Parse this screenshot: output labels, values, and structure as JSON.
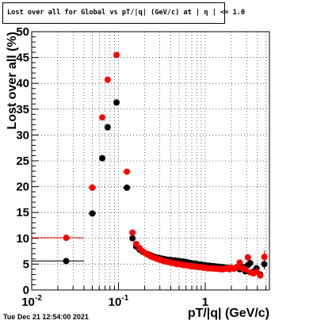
{
  "title": "Lost over all for Global vs pT/|q| (GeV/c) at | η | <= 1.0",
  "timestamp": "Tue Dec 21 12:54:00 2021",
  "chart_data": {
    "type": "scatter",
    "title": "Lost over all for Global vs pT/|q| (GeV/c) at | η | <= 1.0",
    "xlabel": "pT/|q| (GeV/c)",
    "ylabel": "Lost over all (%)",
    "xscale": "log",
    "xlim": [
      0.01,
      5.5
    ],
    "ylim": [
      0,
      50
    ],
    "grid": true,
    "x_tick_labels": [
      "10^-2",
      "10^-1",
      "1"
    ],
    "y_tick_labels": [
      "0",
      "5",
      "10",
      "15",
      "20",
      "25",
      "30",
      "35",
      "40",
      "45",
      "50"
    ],
    "colors": {
      "series_black": "#000000",
      "series_red": "#ff0000"
    },
    "series": [
      {
        "color": "#000000",
        "points": [
          {
            "x": 0.025,
            "y": 5.6,
            "xerr_lo": 0.015,
            "xerr_hi": 0.015
          },
          {
            "x": 0.05,
            "y": 14.8,
            "xerr_lo": 0.005,
            "xerr_hi": 0.005
          },
          {
            "x": 0.065,
            "y": 25.5,
            "xerr_lo": 0.0025,
            "xerr_hi": 0.0025
          },
          {
            "x": 0.075,
            "y": 31.5,
            "xerr_lo": 0.0025,
            "xerr_hi": 0.0025
          },
          {
            "x": 0.095,
            "y": 36.3,
            "xerr_lo": 0.005,
            "xerr_hi": 0.005
          },
          {
            "x": 0.125,
            "y": 19.8,
            "xerr_lo": 0.0125,
            "xerr_hi": 0.0125
          },
          {
            "x": 0.145,
            "y": 10.0,
            "xerr_lo": 0.0075,
            "xerr_hi": 0.0075
          },
          {
            "x": 0.16,
            "y": 8.4
          },
          {
            "x": 0.175,
            "y": 7.8
          },
          {
            "x": 0.19,
            "y": 7.4
          },
          {
            "x": 0.205,
            "y": 7.1
          },
          {
            "x": 0.22,
            "y": 6.9
          },
          {
            "x": 0.235,
            "y": 6.7
          },
          {
            "x": 0.25,
            "y": 6.5
          },
          {
            "x": 0.27,
            "y": 6.3
          },
          {
            "x": 0.29,
            "y": 6.2
          },
          {
            "x": 0.31,
            "y": 6.1
          },
          {
            "x": 0.33,
            "y": 6.0
          },
          {
            "x": 0.35,
            "y": 5.9
          },
          {
            "x": 0.375,
            "y": 5.8
          },
          {
            "x": 0.4,
            "y": 5.8
          },
          {
            "x": 0.425,
            "y": 5.7
          },
          {
            "x": 0.45,
            "y": 5.7
          },
          {
            "x": 0.475,
            "y": 5.6
          },
          {
            "x": 0.5,
            "y": 5.6
          },
          {
            "x": 0.53,
            "y": 5.5
          },
          {
            "x": 0.56,
            "y": 5.5
          },
          {
            "x": 0.6,
            "y": 5.4
          },
          {
            "x": 0.64,
            "y": 5.3
          },
          {
            "x": 0.68,
            "y": 5.2
          },
          {
            "x": 0.72,
            "y": 5.1
          },
          {
            "x": 0.76,
            "y": 5.1
          },
          {
            "x": 0.8,
            "y": 5.0
          },
          {
            "x": 0.85,
            "y": 4.9
          },
          {
            "x": 0.9,
            "y": 4.9
          },
          {
            "x": 0.95,
            "y": 4.8
          },
          {
            "x": 1.0,
            "y": 4.8
          },
          {
            "x": 1.06,
            "y": 4.7
          },
          {
            "x": 1.12,
            "y": 4.7
          },
          {
            "x": 1.19,
            "y": 4.6
          },
          {
            "x": 1.26,
            "y": 4.6
          },
          {
            "x": 1.34,
            "y": 4.5
          },
          {
            "x": 1.42,
            "y": 4.5
          },
          {
            "x": 1.5,
            "y": 4.4
          },
          {
            "x": 1.6,
            "y": 4.4
          },
          {
            "x": 1.7,
            "y": 4.3
          },
          {
            "x": 1.8,
            "y": 4.3
          },
          {
            "x": 1.9,
            "y": 4.2
          },
          {
            "x": 2.0,
            "y": 4.2
          },
          {
            "x": 2.15,
            "y": 4.1
          },
          {
            "x": 2.3,
            "y": 4.3
          },
          {
            "x": 2.5,
            "y": 4.0
          },
          {
            "x": 2.7,
            "y": 4.4
          },
          {
            "x": 2.9,
            "y": 3.6
          },
          {
            "x": 3.1,
            "y": 4.8
          },
          {
            "x": 3.3,
            "y": 5.2
          },
          {
            "x": 3.6,
            "y": 3.5
          },
          {
            "x": 3.9,
            "y": 4.2
          },
          {
            "x": 4.3,
            "y": 3.0
          },
          {
            "x": 4.8,
            "y": 5.0,
            "yerr": 1.0
          }
        ]
      },
      {
        "color": "#ff0000",
        "points": [
          {
            "x": 0.025,
            "y": 10.1,
            "xerr_lo": 0.015,
            "xerr_hi": 0.015
          },
          {
            "x": 0.05,
            "y": 19.8,
            "xerr_lo": 0.005,
            "xerr_hi": 0.005
          },
          {
            "x": 0.065,
            "y": 33.4,
            "xerr_lo": 0.0025,
            "xerr_hi": 0.0025
          },
          {
            "x": 0.075,
            "y": 40.7,
            "xerr_lo": 0.0025,
            "xerr_hi": 0.0025
          },
          {
            "x": 0.095,
            "y": 45.5,
            "xerr_lo": 0.005,
            "xerr_hi": 0.005
          },
          {
            "x": 0.125,
            "y": 22.9,
            "xerr_lo": 0.0125,
            "xerr_hi": 0.0125
          },
          {
            "x": 0.145,
            "y": 11.1,
            "xerr_lo": 0.0075,
            "xerr_hi": 0.0075
          },
          {
            "x": 0.16,
            "y": 8.9
          },
          {
            "x": 0.175,
            "y": 8.1
          },
          {
            "x": 0.19,
            "y": 7.5
          },
          {
            "x": 0.205,
            "y": 7.1
          },
          {
            "x": 0.22,
            "y": 6.8
          },
          {
            "x": 0.235,
            "y": 6.5
          },
          {
            "x": 0.25,
            "y": 6.3
          },
          {
            "x": 0.27,
            "y": 6.1
          },
          {
            "x": 0.29,
            "y": 5.9
          },
          {
            "x": 0.31,
            "y": 5.8
          },
          {
            "x": 0.33,
            "y": 5.6
          },
          {
            "x": 0.35,
            "y": 5.5
          },
          {
            "x": 0.375,
            "y": 5.4
          },
          {
            "x": 0.4,
            "y": 5.3
          },
          {
            "x": 0.425,
            "y": 5.2
          },
          {
            "x": 0.45,
            "y": 5.1
          },
          {
            "x": 0.475,
            "y": 5.0
          },
          {
            "x": 0.5,
            "y": 5.0
          },
          {
            "x": 0.53,
            "y": 4.9
          },
          {
            "x": 0.56,
            "y": 4.8
          },
          {
            "x": 0.6,
            "y": 4.8
          },
          {
            "x": 0.64,
            "y": 4.7
          },
          {
            "x": 0.68,
            "y": 4.6
          },
          {
            "x": 0.72,
            "y": 4.6
          },
          {
            "x": 0.76,
            "y": 4.5
          },
          {
            "x": 0.8,
            "y": 4.5
          },
          {
            "x": 0.85,
            "y": 4.4
          },
          {
            "x": 0.9,
            "y": 4.4
          },
          {
            "x": 0.95,
            "y": 4.3
          },
          {
            "x": 1.0,
            "y": 4.3
          },
          {
            "x": 1.06,
            "y": 4.2
          },
          {
            "x": 1.12,
            "y": 4.2
          },
          {
            "x": 1.19,
            "y": 4.2
          },
          {
            "x": 1.26,
            "y": 4.1
          },
          {
            "x": 1.34,
            "y": 4.1
          },
          {
            "x": 1.42,
            "y": 4.1
          },
          {
            "x": 1.5,
            "y": 4.0
          },
          {
            "x": 1.6,
            "y": 4.0
          },
          {
            "x": 1.7,
            "y": 4.1
          },
          {
            "x": 1.8,
            "y": 4.2
          },
          {
            "x": 1.9,
            "y": 4.0
          },
          {
            "x": 2.0,
            "y": 4.3
          },
          {
            "x": 2.15,
            "y": 4.1
          },
          {
            "x": 2.3,
            "y": 4.4
          },
          {
            "x": 2.5,
            "y": 5.3
          },
          {
            "x": 2.7,
            "y": 4.2
          },
          {
            "x": 2.9,
            "y": 4.0
          },
          {
            "x": 3.1,
            "y": 6.3
          },
          {
            "x": 3.3,
            "y": 3.4
          },
          {
            "x": 3.6,
            "y": 3.2
          },
          {
            "x": 3.9,
            "y": 3.5
          },
          {
            "x": 4.3,
            "y": 2.8
          },
          {
            "x": 4.8,
            "y": 6.4,
            "yerr": 1.2
          }
        ]
      }
    ]
  }
}
